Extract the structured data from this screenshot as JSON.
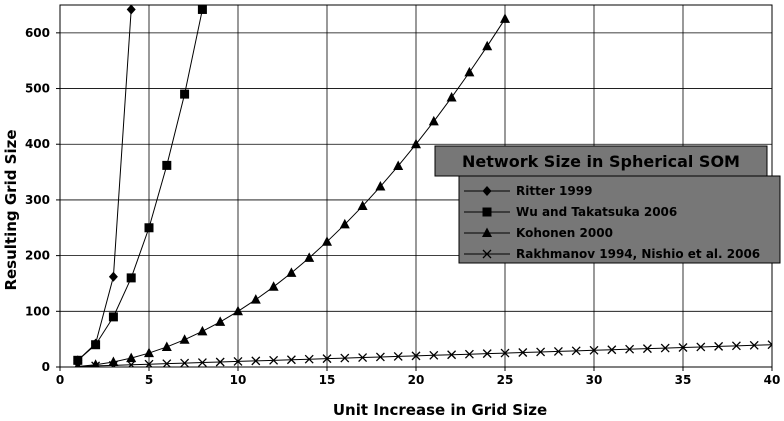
{
  "chart_data": {
    "type": "line",
    "title": "Network Size in Spherical SOM",
    "xlabel": "Unit Increase in Grid Size",
    "ylabel": "Resulting Grid Size",
    "xlim": [
      0,
      40
    ],
    "ylim": [
      0,
      650
    ],
    "x_ticks": [
      0,
      5,
      10,
      15,
      20,
      25,
      30,
      35,
      40
    ],
    "y_ticks": [
      0,
      100,
      200,
      300,
      400,
      500,
      600
    ],
    "grid": true,
    "legend_position": "right-center",
    "series": [
      {
        "name": "Ritter 1999",
        "marker": "diamond",
        "points": [
          [
            1,
            12
          ],
          [
            2,
            42
          ],
          [
            3,
            162
          ],
          [
            4,
            642
          ]
        ]
      },
      {
        "name": "Wu and Takatsuka 2006",
        "marker": "square",
        "points": [
          [
            1,
            12
          ],
          [
            2,
            40
          ],
          [
            3,
            90
          ],
          [
            4,
            160
          ],
          [
            5,
            250
          ],
          [
            6,
            362
          ],
          [
            7,
            490
          ],
          [
            8,
            642
          ]
        ]
      },
      {
        "name": "Kohonen 2000",
        "marker": "triangle",
        "points": [
          [
            1,
            1
          ],
          [
            2,
            4
          ],
          [
            3,
            9
          ],
          [
            4,
            16
          ],
          [
            5,
            25
          ],
          [
            6,
            36
          ],
          [
            7,
            49
          ],
          [
            8,
            64
          ],
          [
            9,
            81
          ],
          [
            10,
            100
          ],
          [
            11,
            121
          ],
          [
            12,
            144
          ],
          [
            13,
            169
          ],
          [
            14,
            196
          ],
          [
            15,
            225
          ],
          [
            16,
            256
          ],
          [
            17,
            289
          ],
          [
            18,
            324
          ],
          [
            19,
            361
          ],
          [
            20,
            400
          ],
          [
            21,
            441
          ],
          [
            22,
            484
          ],
          [
            23,
            529
          ],
          [
            24,
            576
          ],
          [
            25,
            625
          ]
        ]
      },
      {
        "name": "Rakhmanov 1994, Nishio et al. 2006",
        "marker": "x",
        "points": [
          [
            1,
            1
          ],
          [
            2,
            2
          ],
          [
            3,
            3
          ],
          [
            4,
            4
          ],
          [
            5,
            5
          ],
          [
            6,
            6
          ],
          [
            7,
            7
          ],
          [
            8,
            8
          ],
          [
            9,
            9
          ],
          [
            10,
            10
          ],
          [
            11,
            11
          ],
          [
            12,
            12
          ],
          [
            13,
            13
          ],
          [
            14,
            14
          ],
          [
            15,
            15
          ],
          [
            16,
            16
          ],
          [
            17,
            17
          ],
          [
            18,
            18
          ],
          [
            19,
            19
          ],
          [
            20,
            20
          ],
          [
            21,
            21
          ],
          [
            22,
            22
          ],
          [
            23,
            23
          ],
          [
            24,
            24
          ],
          [
            25,
            25
          ],
          [
            26,
            26
          ],
          [
            27,
            27
          ],
          [
            28,
            28
          ],
          [
            29,
            29
          ],
          [
            30,
            30
          ],
          [
            31,
            31
          ],
          [
            32,
            32
          ],
          [
            33,
            33
          ],
          [
            34,
            34
          ],
          [
            35,
            35
          ],
          [
            36,
            36
          ],
          [
            37,
            37
          ],
          [
            38,
            38
          ],
          [
            39,
            39
          ],
          [
            40,
            40
          ]
        ]
      }
    ]
  }
}
